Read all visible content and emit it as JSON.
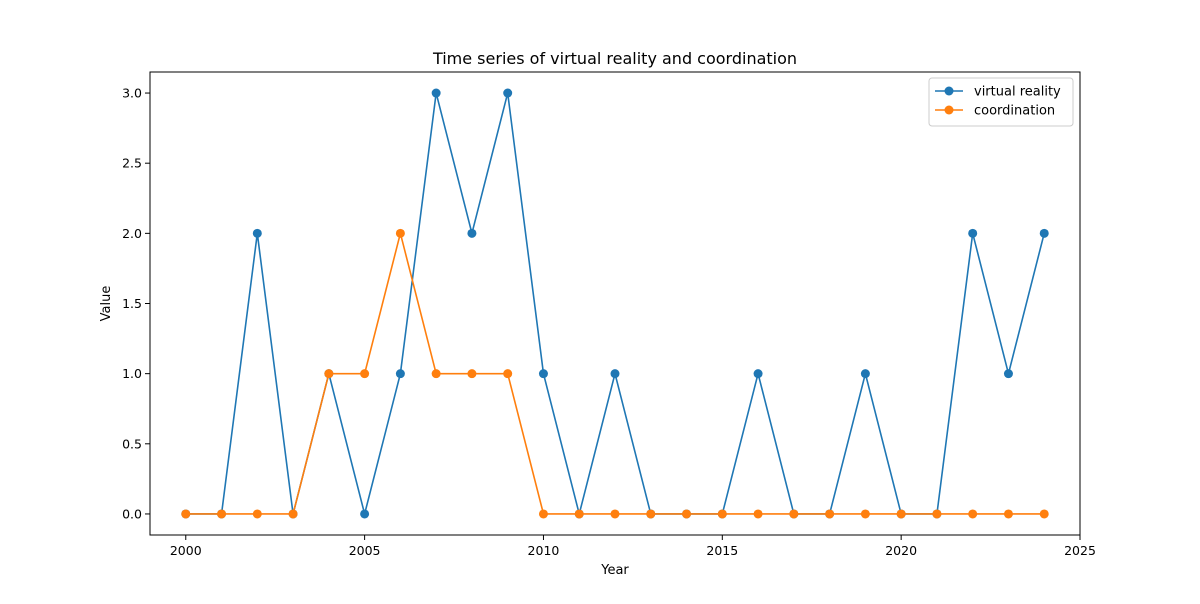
{
  "chart_data": {
    "type": "line",
    "title": "Time series of virtual reality and coordination",
    "xlabel": "Year",
    "ylabel": "Value",
    "x": [
      2000,
      2001,
      2002,
      2003,
      2004,
      2005,
      2006,
      2007,
      2008,
      2009,
      2010,
      2011,
      2012,
      2013,
      2014,
      2015,
      2016,
      2017,
      2018,
      2019,
      2020,
      2021,
      2022,
      2023,
      2024
    ],
    "xlim": [
      1999,
      2025
    ],
    "ylim": [
      -0.15,
      3.15
    ],
    "xticks": [
      "2000",
      "2005",
      "2010",
      "2015",
      "2020",
      "2025"
    ],
    "yticks": [
      "0.0",
      "0.5",
      "1.0",
      "1.5",
      "2.0",
      "2.5",
      "3.0"
    ],
    "grid": false,
    "legend_position": "top-right",
    "series": [
      {
        "name": "virtual reality",
        "color": "#1f77b4",
        "values": [
          0,
          0,
          2,
          0,
          1,
          0,
          1,
          3,
          2,
          3,
          1,
          0,
          1,
          0,
          0,
          0,
          1,
          0,
          0,
          1,
          0,
          0,
          2,
          1,
          2
        ]
      },
      {
        "name": "coordination",
        "color": "#ff7f0e",
        "values": [
          0,
          0,
          0,
          0,
          1,
          1,
          2,
          1,
          1,
          1,
          0,
          0,
          0,
          0,
          0,
          0,
          0,
          0,
          0,
          0,
          0,
          0,
          0,
          0,
          0
        ]
      }
    ]
  }
}
